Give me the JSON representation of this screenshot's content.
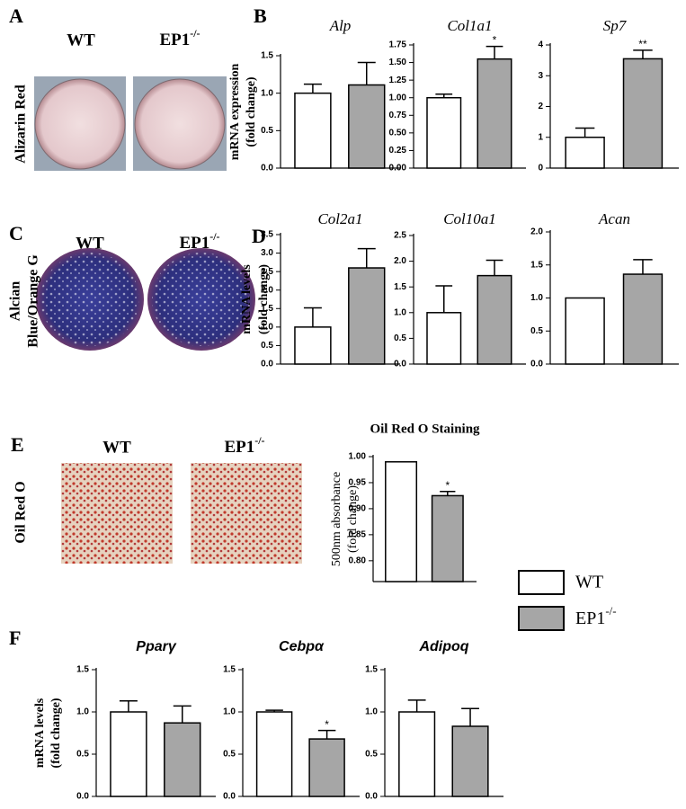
{
  "figure": {
    "panels": [
      "A",
      "B",
      "C",
      "D",
      "E",
      "F"
    ],
    "panel_a": {
      "labels": [
        "WT",
        {
          "base": "EP1",
          "sup": "-/-"
        }
      ],
      "stain": "Alizarin Red"
    },
    "panel_c": {
      "labels": [
        "WT",
        {
          "base": "EP1",
          "sup": "-/-"
        }
      ],
      "stain": [
        "Alcian",
        "Blue/Orange G"
      ]
    },
    "panel_e": {
      "labels": [
        "WT",
        {
          "base": "EP1",
          "sup": "-/-"
        }
      ],
      "stain": "Oil Red O"
    },
    "legend": [
      {
        "name": "WT",
        "color": "#ffffff"
      },
      {
        "name": {
          "base": "EP1",
          "sup": "-/-"
        },
        "color": "#a6a6a6"
      }
    ]
  },
  "chart_data": [
    {
      "type": "bar",
      "title": "Alp",
      "ylabel": [
        "mRNA expression",
        "(fold change)"
      ],
      "values": [
        1.0,
        1.11
      ],
      "errors": [
        0.12,
        0.3
      ],
      "annotations": [
        null,
        null
      ],
      "ylim": [
        0,
        1.5
      ],
      "yticks": [
        {
          "value": 0,
          "label": "0.0"
        },
        0.5,
        {
          "value": 1,
          "label": "1.0"
        },
        1.5
      ]
    },
    {
      "type": "bar",
      "title": "Col1a1",
      "values": [
        1.0,
        1.55
      ],
      "errors": [
        0.05,
        0.18
      ],
      "annotations": [
        null,
        "*"
      ],
      "ylim": [
        0,
        1.75
      ],
      "yticks": [
        {
          "value": 0,
          "label": "0.00"
        },
        0.25,
        {
          "value": 0.5,
          "label": "0.50"
        },
        0.75,
        {
          "value": 1,
          "label": "1.00"
        },
        1.25,
        {
          "value": 1.5,
          "label": "1.50"
        },
        1.75
      ]
    },
    {
      "type": "bar",
      "title": "Sp7",
      "values": [
        1.0,
        3.55
      ],
      "errors": [
        0.3,
        0.28
      ],
      "annotations": [
        null,
        "**"
      ],
      "ylim": [
        0,
        4
      ],
      "yticks": [
        0,
        1,
        2,
        3,
        4
      ]
    },
    {
      "type": "bar",
      "title": "Col2a1",
      "ylabel": [
        "mRNA levels",
        "(fold change)"
      ],
      "values": [
        1.0,
        2.6
      ],
      "errors": [
        0.52,
        0.52
      ],
      "annotations": [
        null,
        null
      ],
      "ylim": [
        0,
        3.5
      ],
      "yticks": [
        {
          "value": 0,
          "label": "0.0"
        },
        0.5,
        {
          "value": 1,
          "label": "1.0"
        },
        1.5,
        {
          "value": 2,
          "label": "2.0"
        },
        2.5,
        {
          "value": 3,
          "label": "3.0"
        },
        3.5
      ]
    },
    {
      "type": "bar",
      "title": "Col10a1",
      "values": [
        1.0,
        1.72
      ],
      "errors": [
        0.52,
        0.3
      ],
      "annotations": [
        null,
        null
      ],
      "ylim": [
        0,
        2.5
      ],
      "yticks": [
        {
          "value": 0,
          "label": "0.0"
        },
        0.5,
        {
          "value": 1,
          "label": "1.0"
        },
        1.5,
        {
          "value": 2,
          "label": "2.0"
        },
        2.5
      ]
    },
    {
      "type": "bar",
      "title": "Acan",
      "values": [
        1.0,
        1.36
      ],
      "errors": [
        0,
        0.22
      ],
      "annotations": [
        null,
        null
      ],
      "ylim": [
        0,
        2.0
      ],
      "yticks": [
        {
          "value": 0,
          "label": "0.0"
        },
        0.5,
        {
          "value": 1,
          "label": "1.0"
        },
        1.5,
        {
          "value": 2,
          "label": "2.0"
        }
      ]
    },
    {
      "type": "bar",
      "title": "Oil Red O Staining",
      "ylabel": [
        "500nm absorbance",
        "(fold change)"
      ],
      "values": [
        0.99,
        0.925
      ],
      "errors": [
        0,
        0.008
      ],
      "annotations": [
        null,
        "*"
      ],
      "ylim": [
        0.76,
        1.0
      ],
      "yticks": [
        {
          "value": 0.8,
          "label": "0.80"
        },
        0.85,
        {
          "value": 0.9,
          "label": "0.90"
        },
        0.95,
        {
          "value": 1,
          "label": "1.00"
        }
      ]
    },
    {
      "type": "bar",
      "title": "Pparγ",
      "ylabel": [
        "mRNA levels",
        "(fold change)"
      ],
      "values": [
        1.0,
        0.87
      ],
      "errors": [
        0.13,
        0.2
      ],
      "annotations": [
        null,
        null
      ],
      "ylim": [
        0,
        1.5
      ],
      "yticks": [
        {
          "value": 0,
          "label": "0.0"
        },
        0.5,
        {
          "value": 1,
          "label": "1.0"
        },
        1.5
      ]
    },
    {
      "type": "bar",
      "title": "Cebpα",
      "values": [
        1.0,
        0.68
      ],
      "errors": [
        0.02,
        0.1
      ],
      "annotations": [
        null,
        "*"
      ],
      "ylim": [
        0,
        1.5
      ],
      "yticks": [
        {
          "value": 0,
          "label": "0.0"
        },
        0.5,
        {
          "value": 1,
          "label": "1.0"
        },
        1.5
      ]
    },
    {
      "type": "bar",
      "title": "Adipoq",
      "values": [
        1.0,
        0.83
      ],
      "errors": [
        0.14,
        0.21
      ],
      "annotations": [
        null,
        null
      ],
      "ylim": [
        0,
        1.5
      ],
      "yticks": [
        {
          "value": 0,
          "label": "0.0"
        },
        0.5,
        {
          "value": 1,
          "label": "1.0"
        },
        1.5
      ]
    }
  ]
}
